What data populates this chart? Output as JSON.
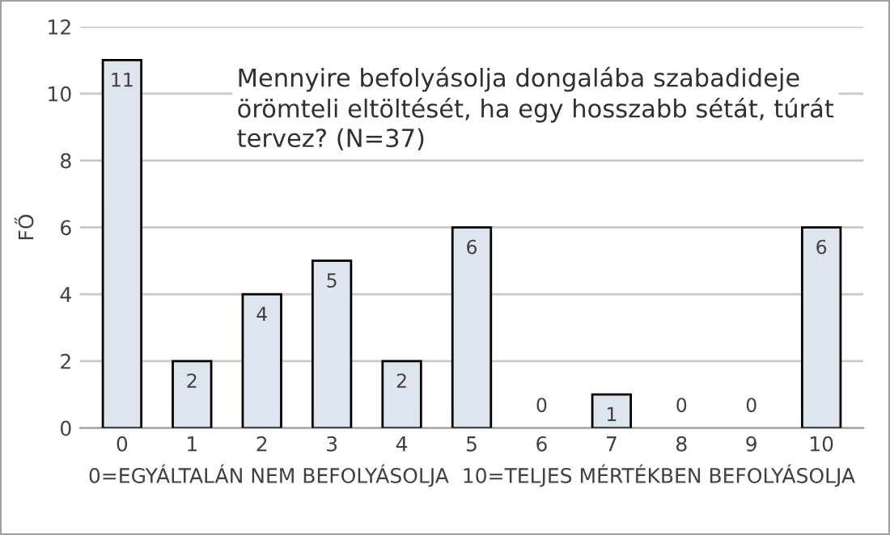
{
  "chart_data": {
    "type": "bar",
    "title": "Mennyire befolyásolja dongalába szabadideje örömteli eltöltését, ha egy hosszabb sétát, túrát tervez? (N=37)",
    "xlabel": "0=EGYÁLTALÁN NEM BEFOLYÁSOLJA  10=TELJES MÉRTÉKBEN BEFOLYÁSOLJA",
    "ylabel": "FŐ",
    "categories": [
      "0",
      "1",
      "2",
      "3",
      "4",
      "5",
      "6",
      "7",
      "8",
      "9",
      "10"
    ],
    "values": [
      11,
      2,
      4,
      5,
      2,
      6,
      0,
      1,
      0,
      0,
      6
    ],
    "color": "#dfe5ef",
    "ylim": [
      0,
      12
    ],
    "yticks": [
      0,
      2,
      4,
      6,
      8,
      10,
      12
    ],
    "grid": "y",
    "data_labels": true,
    "legend": false
  }
}
